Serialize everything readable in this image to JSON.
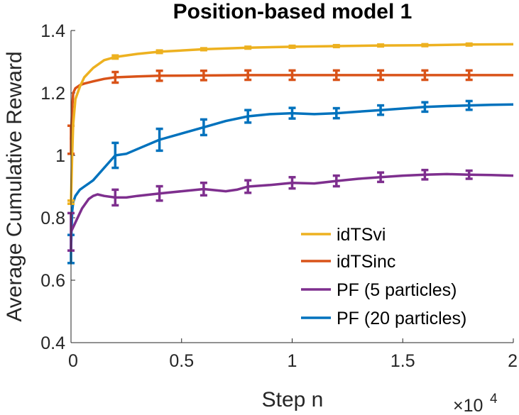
{
  "chart_data": {
    "type": "line",
    "title": "Position-based model 1",
    "xlabel": "Step n",
    "ylabel": "Average Cumulative Reward",
    "x_exponent_base": "×10",
    "x_exponent": "4",
    "xlim": [
      0,
      2
    ],
    "ylim": [
      0.4,
      1.4
    ],
    "xticks": [
      0,
      0.5,
      1,
      1.5,
      2
    ],
    "xtick_labels": [
      "0",
      "0.5",
      "1",
      "1.5",
      "2"
    ],
    "yticks": [
      0.4,
      0.6,
      0.8,
      1.0,
      1.2,
      1.4
    ],
    "ytick_labels": [
      "0.4",
      "0.6",
      "0.8",
      "1",
      "1.2",
      "1.4"
    ],
    "legend_position": "bottom-right",
    "series": [
      {
        "name": "idTSvi",
        "color": "#EDB120",
        "x": [
          0,
          0.005,
          0.01,
          0.02,
          0.04,
          0.06,
          0.1,
          0.15,
          0.2,
          0.3,
          0.4,
          0.6,
          0.8,
          1.0,
          1.2,
          1.4,
          1.6,
          1.8,
          2.0
        ],
        "y": [
          0.85,
          1.0,
          1.1,
          1.18,
          1.22,
          1.25,
          1.28,
          1.305,
          1.315,
          1.325,
          1.332,
          1.34,
          1.345,
          1.348,
          1.35,
          1.352,
          1.353,
          1.355,
          1.356
        ],
        "error_x": [
          0,
          0.2,
          0.4,
          0.6,
          0.8,
          1.0,
          1.2,
          1.4,
          1.6,
          1.8
        ],
        "error_y": [
          0.85,
          1.315,
          1.332,
          1.34,
          1.345,
          1.348,
          1.35,
          1.352,
          1.353,
          1.355
        ],
        "error_half": [
          0.005,
          0.005,
          0.004,
          0.003,
          0.003,
          0.003,
          0.003,
          0.003,
          0.003,
          0.003
        ]
      },
      {
        "name": "idTSinc",
        "color": "#D95319",
        "x": [
          0,
          0.005,
          0.01,
          0.02,
          0.04,
          0.06,
          0.1,
          0.15,
          0.2,
          0.3,
          0.4,
          0.6,
          0.8,
          1.0,
          1.2,
          1.4,
          1.6,
          1.8,
          2.0
        ],
        "y": [
          1.05,
          1.15,
          1.2,
          1.215,
          1.225,
          1.23,
          1.237,
          1.245,
          1.25,
          1.253,
          1.255,
          1.256,
          1.257,
          1.257,
          1.257,
          1.257,
          1.257,
          1.257,
          1.257
        ],
        "error_x": [
          0,
          0.2,
          0.4,
          0.6,
          0.8,
          1.0,
          1.2,
          1.4,
          1.6,
          1.8
        ],
        "error_y": [
          1.05,
          1.25,
          1.255,
          1.256,
          1.257,
          1.257,
          1.257,
          1.257,
          1.257,
          1.257
        ],
        "error_half": [
          0.045,
          0.017,
          0.016,
          0.015,
          0.015,
          0.015,
          0.015,
          0.015,
          0.015,
          0.015
        ]
      },
      {
        "name": "PF (5 particles)",
        "color": "#7E2F8E",
        "x": [
          0,
          0.01,
          0.03,
          0.05,
          0.08,
          0.1,
          0.12,
          0.15,
          0.2,
          0.25,
          0.3,
          0.4,
          0.5,
          0.6,
          0.7,
          0.75,
          0.8,
          0.9,
          1.0,
          1.1,
          1.2,
          1.3,
          1.4,
          1.5,
          1.6,
          1.7,
          1.8,
          1.9,
          2.0
        ],
        "y": [
          0.755,
          0.77,
          0.8,
          0.83,
          0.86,
          0.87,
          0.875,
          0.87,
          0.865,
          0.865,
          0.87,
          0.878,
          0.885,
          0.892,
          0.885,
          0.89,
          0.9,
          0.905,
          0.912,
          0.91,
          0.918,
          0.925,
          0.93,
          0.935,
          0.938,
          0.94,
          0.938,
          0.937,
          0.935
        ],
        "error_x": [
          0,
          0.2,
          0.4,
          0.6,
          0.8,
          1.0,
          1.2,
          1.4,
          1.6,
          1.8
        ],
        "error_y": [
          0.755,
          0.865,
          0.878,
          0.892,
          0.9,
          0.912,
          0.918,
          0.93,
          0.938,
          0.938
        ],
        "error_half": [
          0.06,
          0.025,
          0.023,
          0.02,
          0.02,
          0.018,
          0.017,
          0.015,
          0.015,
          0.013
        ]
      },
      {
        "name": "PF (20 particles)",
        "color": "#0072BD",
        "x": [
          0,
          0.005,
          0.01,
          0.02,
          0.04,
          0.06,
          0.1,
          0.15,
          0.2,
          0.25,
          0.3,
          0.4,
          0.5,
          0.6,
          0.7,
          0.8,
          0.9,
          1.0,
          1.1,
          1.2,
          1.3,
          1.4,
          1.5,
          1.6,
          1.7,
          1.8,
          1.9,
          2.0
        ],
        "y": [
          0.7,
          0.82,
          0.85,
          0.87,
          0.89,
          0.9,
          0.92,
          0.96,
          1.0,
          1.005,
          1.02,
          1.05,
          1.07,
          1.09,
          1.11,
          1.125,
          1.132,
          1.135,
          1.132,
          1.135,
          1.14,
          1.145,
          1.15,
          1.155,
          1.158,
          1.16,
          1.162,
          1.163
        ],
        "error_x": [
          0,
          0.2,
          0.4,
          0.6,
          0.8,
          1.0,
          1.2,
          1.4,
          1.6,
          1.8
        ],
        "error_y": [
          0.7,
          1.0,
          1.05,
          1.09,
          1.125,
          1.135,
          1.135,
          1.145,
          1.155,
          1.16
        ],
        "error_half": [
          0.045,
          0.04,
          0.035,
          0.025,
          0.02,
          0.017,
          0.016,
          0.015,
          0.015,
          0.014
        ]
      }
    ]
  }
}
